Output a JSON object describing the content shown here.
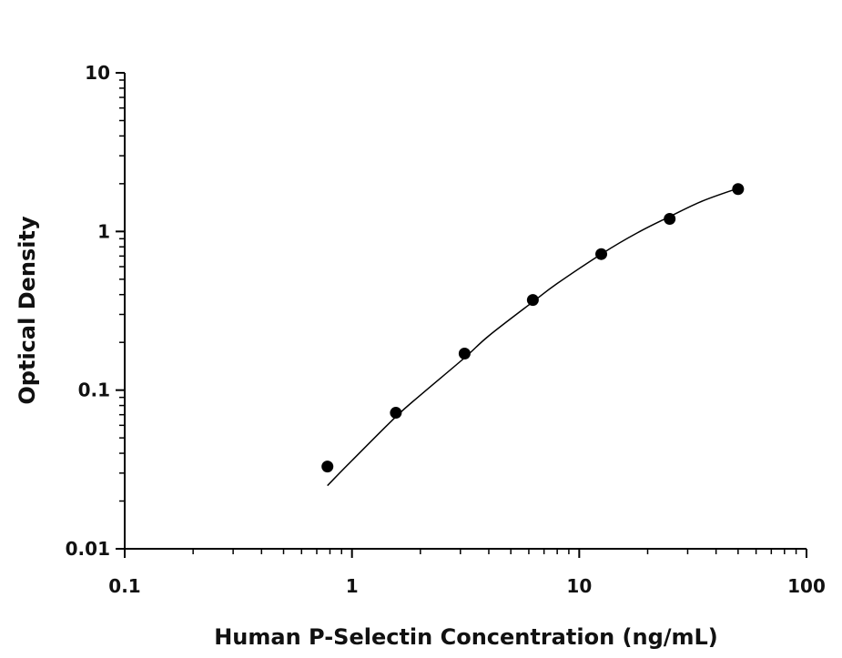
{
  "chart_data": {
    "type": "scatter",
    "title": "",
    "xlabel": "Human P-Selectin Concentration (ng/mL)",
    "ylabel": "Optical Density",
    "xscale": "log",
    "yscale": "log",
    "xlim": [
      0.1,
      100
    ],
    "ylim": [
      0.01,
      10
    ],
    "x_ticks": [
      "0.1",
      "1",
      "10",
      "100"
    ],
    "y_ticks": [
      "0.01",
      "0.1",
      "1",
      "10"
    ],
    "grid": false,
    "legend": "none",
    "points": [
      {
        "x": 0.78,
        "y": 0.033
      },
      {
        "x": 1.56,
        "y": 0.072
      },
      {
        "x": 3.13,
        "y": 0.17
      },
      {
        "x": 6.25,
        "y": 0.37
      },
      {
        "x": 12.5,
        "y": 0.72
      },
      {
        "x": 25,
        "y": 1.2
      },
      {
        "x": 50,
        "y": 1.85
      }
    ],
    "fit_curve": [
      {
        "x": 0.78,
        "y": 0.025
      },
      {
        "x": 1.0,
        "y": 0.036
      },
      {
        "x": 1.56,
        "y": 0.068
      },
      {
        "x": 2.0,
        "y": 0.093
      },
      {
        "x": 3.13,
        "y": 0.16
      },
      {
        "x": 4.0,
        "y": 0.22
      },
      {
        "x": 6.25,
        "y": 0.36
      },
      {
        "x": 8.0,
        "y": 0.47
      },
      {
        "x": 12.5,
        "y": 0.72
      },
      {
        "x": 18.0,
        "y": 0.98
      },
      {
        "x": 25,
        "y": 1.24
      },
      {
        "x": 35,
        "y": 1.56
      },
      {
        "x": 50,
        "y": 1.87
      }
    ],
    "colors": {
      "marker": "#000000",
      "line": "#000000",
      "axis": "#000000"
    }
  }
}
